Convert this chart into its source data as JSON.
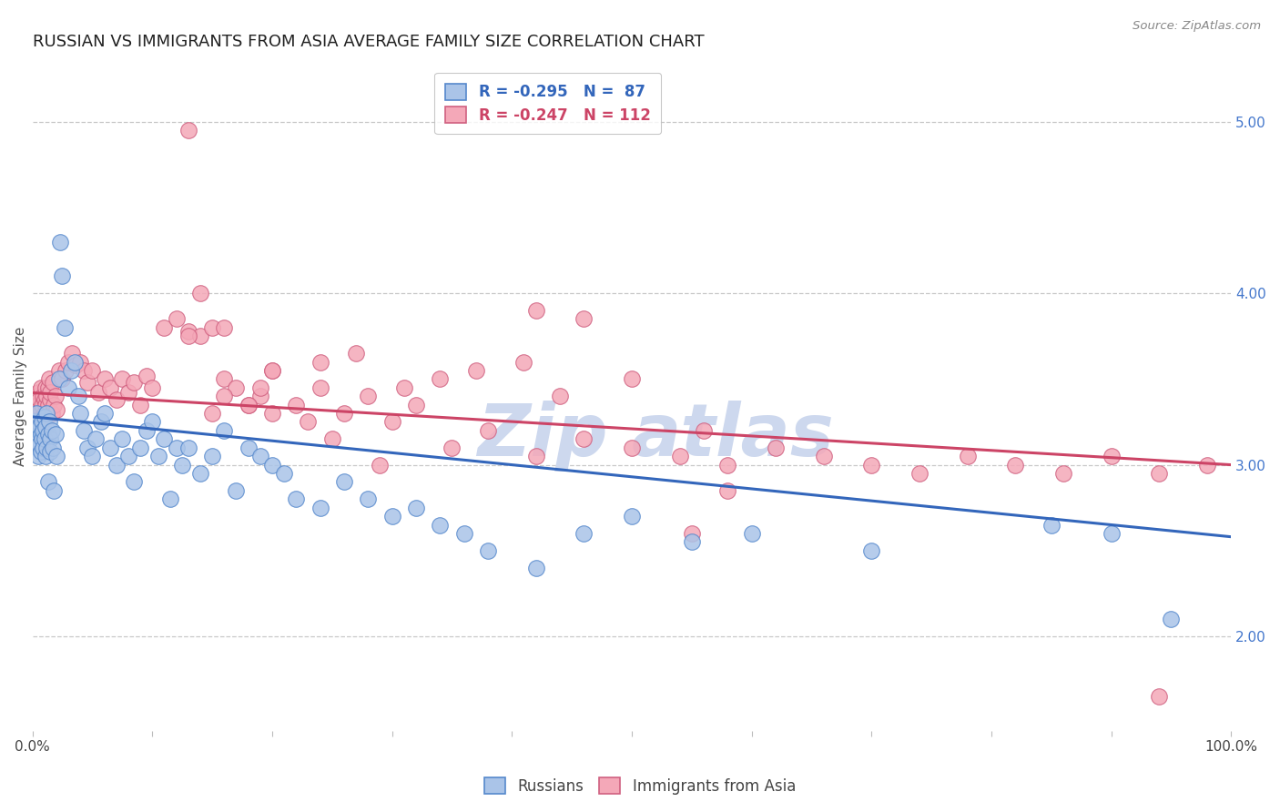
{
  "title": "RUSSIAN VS IMMIGRANTS FROM ASIA AVERAGE FAMILY SIZE CORRELATION CHART",
  "source": "Source: ZipAtlas.com",
  "ylabel": "Average Family Size",
  "right_yticks": [
    2.0,
    3.0,
    4.0,
    5.0
  ],
  "watermark_top": "Zip",
  "watermark_bot": "atlas",
  "legend": {
    "blue_label": "R = -0.295   N =  87",
    "pink_label": "R = -0.247   N = 112"
  },
  "blue_fill": "#aac4e8",
  "blue_edge": "#5588cc",
  "pink_fill": "#f4a8b8",
  "pink_edge": "#d06080",
  "blue_line": "#3366bb",
  "pink_line": "#cc4466",
  "blue_scatter_x": [
    0.001,
    0.002,
    0.003,
    0.003,
    0.004,
    0.004,
    0.005,
    0.005,
    0.006,
    0.006,
    0.007,
    0.007,
    0.008,
    0.008,
    0.009,
    0.009,
    0.01,
    0.01,
    0.011,
    0.011,
    0.012,
    0.012,
    0.013,
    0.013,
    0.014,
    0.015,
    0.015,
    0.016,
    0.017,
    0.018,
    0.019,
    0.02,
    0.022,
    0.023,
    0.025,
    0.027,
    0.03,
    0.032,
    0.035,
    0.038,
    0.04,
    0.043,
    0.046,
    0.05,
    0.053,
    0.057,
    0.06,
    0.065,
    0.07,
    0.075,
    0.08,
    0.085,
    0.09,
    0.095,
    0.1,
    0.105,
    0.11,
    0.115,
    0.12,
    0.125,
    0.13,
    0.14,
    0.15,
    0.16,
    0.17,
    0.18,
    0.19,
    0.2,
    0.21,
    0.22,
    0.24,
    0.26,
    0.28,
    0.3,
    0.32,
    0.34,
    0.36,
    0.38,
    0.42,
    0.46,
    0.5,
    0.55,
    0.6,
    0.7,
    0.85,
    0.9,
    0.95
  ],
  "blue_scatter_y": [
    3.2,
    3.25,
    3.15,
    3.3,
    3.1,
    3.2,
    3.18,
    3.05,
    3.22,
    3.12,
    3.08,
    3.18,
    3.15,
    3.25,
    3.2,
    3.1,
    3.28,
    3.15,
    3.05,
    3.22,
    3.1,
    3.3,
    3.18,
    2.9,
    3.25,
    3.15,
    3.08,
    3.2,
    3.1,
    2.85,
    3.18,
    3.05,
    3.5,
    4.3,
    4.1,
    3.8,
    3.45,
    3.55,
    3.6,
    3.4,
    3.3,
    3.2,
    3.1,
    3.05,
    3.15,
    3.25,
    3.3,
    3.1,
    3.0,
    3.15,
    3.05,
    2.9,
    3.1,
    3.2,
    3.25,
    3.05,
    3.15,
    2.8,
    3.1,
    3.0,
    3.1,
    2.95,
    3.05,
    3.2,
    2.85,
    3.1,
    3.05,
    3.0,
    2.95,
    2.8,
    2.75,
    2.9,
    2.8,
    2.7,
    2.75,
    2.65,
    2.6,
    2.5,
    2.4,
    2.6,
    2.7,
    2.55,
    2.6,
    2.5,
    2.65,
    2.6,
    2.1
  ],
  "pink_scatter_x": [
    0.001,
    0.002,
    0.003,
    0.003,
    0.004,
    0.004,
    0.005,
    0.005,
    0.006,
    0.006,
    0.007,
    0.007,
    0.008,
    0.008,
    0.009,
    0.009,
    0.01,
    0.01,
    0.011,
    0.011,
    0.012,
    0.012,
    0.013,
    0.013,
    0.014,
    0.015,
    0.015,
    0.016,
    0.017,
    0.018,
    0.019,
    0.02,
    0.022,
    0.025,
    0.028,
    0.03,
    0.033,
    0.036,
    0.04,
    0.043,
    0.046,
    0.05,
    0.055,
    0.06,
    0.065,
    0.07,
    0.075,
    0.08,
    0.085,
    0.09,
    0.095,
    0.1,
    0.11,
    0.12,
    0.13,
    0.14,
    0.15,
    0.16,
    0.17,
    0.18,
    0.19,
    0.2,
    0.22,
    0.24,
    0.26,
    0.28,
    0.3,
    0.32,
    0.35,
    0.38,
    0.42,
    0.46,
    0.5,
    0.54,
    0.58,
    0.62,
    0.66,
    0.7,
    0.74,
    0.78,
    0.82,
    0.86,
    0.9,
    0.94,
    0.98,
    0.37,
    0.41,
    0.15,
    0.13,
    0.56,
    0.58,
    0.5,
    0.42,
    0.46,
    0.2,
    0.24,
    0.27,
    0.31,
    0.34,
    0.19,
    0.44,
    0.55,
    0.14,
    0.16,
    0.13,
    0.29,
    0.25,
    0.23,
    0.2,
    0.18,
    0.16,
    0.94
  ],
  "pink_scatter_y": [
    3.35,
    3.28,
    3.4,
    3.22,
    3.35,
    3.25,
    3.42,
    3.3,
    3.38,
    3.25,
    3.32,
    3.45,
    3.28,
    3.35,
    3.4,
    3.22,
    3.38,
    3.3,
    3.45,
    3.35,
    3.28,
    3.4,
    3.35,
    3.45,
    3.5,
    3.38,
    3.42,
    3.3,
    3.48,
    3.35,
    3.4,
    3.32,
    3.55,
    3.5,
    3.55,
    3.6,
    3.65,
    3.58,
    3.6,
    3.55,
    3.48,
    3.55,
    3.42,
    3.5,
    3.45,
    3.38,
    3.5,
    3.42,
    3.48,
    3.35,
    3.52,
    3.45,
    3.8,
    3.85,
    3.78,
    3.75,
    3.3,
    3.5,
    3.45,
    3.35,
    3.4,
    3.55,
    3.35,
    3.45,
    3.3,
    3.4,
    3.25,
    3.35,
    3.1,
    3.2,
    3.05,
    3.15,
    3.1,
    3.05,
    3.0,
    3.1,
    3.05,
    3.0,
    2.95,
    3.05,
    3.0,
    2.95,
    3.05,
    2.95,
    3.0,
    3.55,
    3.6,
    3.8,
    3.75,
    3.2,
    2.85,
    3.5,
    3.9,
    3.85,
    3.55,
    3.6,
    3.65,
    3.45,
    3.5,
    3.45,
    3.4,
    2.6,
    4.0,
    3.8,
    4.95,
    3.0,
    3.15,
    3.25,
    3.3,
    3.35,
    3.4,
    1.65
  ],
  "blue_trend_x": [
    0.0,
    1.0
  ],
  "blue_trend_y": [
    3.28,
    2.58
  ],
  "pink_trend_x": [
    0.0,
    1.0
  ],
  "pink_trend_y": [
    3.42,
    3.0
  ],
  "xlim": [
    0.0,
    1.0
  ],
  "ylim": [
    1.45,
    5.35
  ],
  "bg_color": "#ffffff",
  "grid_color": "#c8c8c8",
  "title_fontsize": 13,
  "ylabel_fontsize": 11,
  "tick_fontsize": 11,
  "legend_fontsize": 12,
  "watermark_color": "#cdd8ee",
  "source_text": "Source: ZipAtlas.com"
}
